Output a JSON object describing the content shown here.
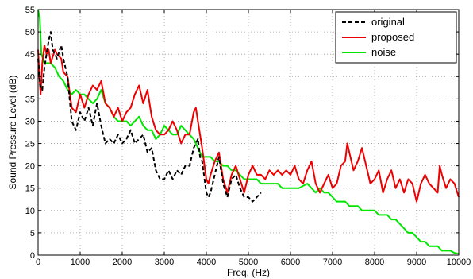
{
  "chart_data": {
    "type": "line",
    "title": "",
    "xlabel": "Freq. (Hz)",
    "ylabel": "Sound Pressure Level (dB)",
    "xlim": [
      0,
      10000
    ],
    "ylim": [
      0,
      55
    ],
    "xticks": [
      0,
      1000,
      2000,
      3000,
      4000,
      5000,
      6000,
      7000,
      8000,
      9000,
      10000
    ],
    "yticks": [
      0,
      5,
      10,
      15,
      20,
      25,
      30,
      35,
      40,
      45,
      50,
      55
    ],
    "grid": true,
    "legend_position": "top-right",
    "series": [
      {
        "name": "original",
        "color": "#000000",
        "style": "dashed",
        "points": [
          [
            0,
            44
          ],
          [
            50,
            38
          ],
          [
            100,
            37
          ],
          [
            150,
            42
          ],
          [
            250,
            48
          ],
          [
            300,
            50
          ],
          [
            350,
            46
          ],
          [
            450,
            44
          ],
          [
            550,
            47
          ],
          [
            600,
            44
          ],
          [
            700,
            40
          ],
          [
            800,
            30
          ],
          [
            900,
            28
          ],
          [
            1000,
            32
          ],
          [
            1100,
            30
          ],
          [
            1200,
            33
          ],
          [
            1300,
            29
          ],
          [
            1400,
            34
          ],
          [
            1500,
            29
          ],
          [
            1600,
            25
          ],
          [
            1700,
            26
          ],
          [
            1800,
            25
          ],
          [
            1900,
            27
          ],
          [
            2000,
            25
          ],
          [
            2100,
            26
          ],
          [
            2200,
            28
          ],
          [
            2300,
            25
          ],
          [
            2400,
            26
          ],
          [
            2500,
            27
          ],
          [
            2600,
            23
          ],
          [
            2700,
            24
          ],
          [
            2800,
            19
          ],
          [
            2900,
            17
          ],
          [
            3000,
            17
          ],
          [
            3100,
            19
          ],
          [
            3200,
            17
          ],
          [
            3300,
            19
          ],
          [
            3400,
            18
          ],
          [
            3500,
            20
          ],
          [
            3600,
            20
          ],
          [
            3700,
            24
          ],
          [
            3800,
            26
          ],
          [
            3850,
            22
          ],
          [
            3900,
            21
          ],
          [
            4000,
            14
          ],
          [
            4050,
            13
          ],
          [
            4100,
            14
          ],
          [
            4200,
            18
          ],
          [
            4300,
            22
          ],
          [
            4400,
            16
          ],
          [
            4500,
            13
          ],
          [
            4600,
            17
          ],
          [
            4700,
            18
          ],
          [
            4800,
            15
          ],
          [
            4900,
            13
          ],
          [
            5000,
            13
          ],
          [
            5100,
            12
          ],
          [
            5200,
            13
          ],
          [
            5300,
            14
          ]
        ]
      },
      {
        "name": "proposed",
        "color": "#ee0000",
        "style": "solid",
        "points": [
          [
            0,
            46
          ],
          [
            30,
            40
          ],
          [
            60,
            36
          ],
          [
            100,
            43
          ],
          [
            150,
            47
          ],
          [
            200,
            45
          ],
          [
            250,
            46
          ],
          [
            300,
            43
          ],
          [
            400,
            46
          ],
          [
            450,
            45
          ],
          [
            550,
            44
          ],
          [
            600,
            41
          ],
          [
            700,
            40
          ],
          [
            800,
            33
          ],
          [
            900,
            32
          ],
          [
            1000,
            36
          ],
          [
            1100,
            33
          ],
          [
            1200,
            36
          ],
          [
            1300,
            38
          ],
          [
            1400,
            37
          ],
          [
            1500,
            39
          ],
          [
            1600,
            34
          ],
          [
            1700,
            33
          ],
          [
            1800,
            31
          ],
          [
            1900,
            33
          ],
          [
            2000,
            30
          ],
          [
            2100,
            32
          ],
          [
            2200,
            33
          ],
          [
            2300,
            36
          ],
          [
            2400,
            38
          ],
          [
            2500,
            34
          ],
          [
            2600,
            37
          ],
          [
            2700,
            31
          ],
          [
            2800,
            28
          ],
          [
            2900,
            27
          ],
          [
            3000,
            27
          ],
          [
            3100,
            28
          ],
          [
            3200,
            30
          ],
          [
            3300,
            28
          ],
          [
            3400,
            25
          ],
          [
            3500,
            27
          ],
          [
            3600,
            27
          ],
          [
            3700,
            32
          ],
          [
            3750,
            33
          ],
          [
            3800,
            30
          ],
          [
            3900,
            24
          ],
          [
            4000,
            17
          ],
          [
            4050,
            16
          ],
          [
            4100,
            18
          ],
          [
            4200,
            21
          ],
          [
            4300,
            23
          ],
          [
            4400,
            17
          ],
          [
            4500,
            14
          ],
          [
            4600,
            18
          ],
          [
            4700,
            20
          ],
          [
            4800,
            17
          ],
          [
            4900,
            14
          ],
          [
            5000,
            18
          ],
          [
            5100,
            20
          ],
          [
            5200,
            18
          ],
          [
            5300,
            18
          ],
          [
            5400,
            17
          ],
          [
            5500,
            19
          ],
          [
            5600,
            18
          ],
          [
            5700,
            19
          ],
          [
            5800,
            18
          ],
          [
            5900,
            19
          ],
          [
            6000,
            18
          ],
          [
            6100,
            20
          ],
          [
            6200,
            17
          ],
          [
            6300,
            16
          ],
          [
            6400,
            19
          ],
          [
            6500,
            21
          ],
          [
            6600,
            16
          ],
          [
            6700,
            14
          ],
          [
            6800,
            16
          ],
          [
            6900,
            18
          ],
          [
            7000,
            15
          ],
          [
            7100,
            16
          ],
          [
            7200,
            20
          ],
          [
            7300,
            21
          ],
          [
            7350,
            25
          ],
          [
            7400,
            23
          ],
          [
            7500,
            19
          ],
          [
            7600,
            21
          ],
          [
            7700,
            24
          ],
          [
            7800,
            20
          ],
          [
            7900,
            16
          ],
          [
            8000,
            17
          ],
          [
            8100,
            19
          ],
          [
            8200,
            14
          ],
          [
            8300,
            17
          ],
          [
            8400,
            19
          ],
          [
            8500,
            15
          ],
          [
            8600,
            17
          ],
          [
            8700,
            14
          ],
          [
            8800,
            17
          ],
          [
            8900,
            16
          ],
          [
            9000,
            12
          ],
          [
            9100,
            16
          ],
          [
            9200,
            18
          ],
          [
            9300,
            16
          ],
          [
            9400,
            15
          ],
          [
            9500,
            14
          ],
          [
            9550,
            20
          ],
          [
            9600,
            18
          ],
          [
            9700,
            15
          ],
          [
            9800,
            17
          ],
          [
            9900,
            16
          ],
          [
            10000,
            13
          ]
        ]
      },
      {
        "name": "noise",
        "color": "#00e600",
        "style": "solid",
        "points": [
          [
            0,
            55
          ],
          [
            40,
            53
          ],
          [
            80,
            45
          ],
          [
            150,
            43
          ],
          [
            300,
            43
          ],
          [
            400,
            42
          ],
          [
            500,
            40
          ],
          [
            600,
            39
          ],
          [
            700,
            37
          ],
          [
            800,
            36
          ],
          [
            900,
            37
          ],
          [
            1000,
            36
          ],
          [
            1100,
            36
          ],
          [
            1200,
            35
          ],
          [
            1300,
            34
          ],
          [
            1400,
            35
          ],
          [
            1500,
            37
          ],
          [
            1600,
            34
          ],
          [
            1700,
            33
          ],
          [
            1800,
            31
          ],
          [
            1900,
            30
          ],
          [
            2000,
            30
          ],
          [
            2100,
            30
          ],
          [
            2200,
            29
          ],
          [
            2300,
            30
          ],
          [
            2400,
            31
          ],
          [
            2500,
            29
          ],
          [
            2600,
            28
          ],
          [
            2700,
            28
          ],
          [
            2800,
            26
          ],
          [
            2900,
            27
          ],
          [
            3000,
            29
          ],
          [
            3100,
            28
          ],
          [
            3200,
            27
          ],
          [
            3300,
            27
          ],
          [
            3400,
            29
          ],
          [
            3500,
            28
          ],
          [
            3600,
            27
          ],
          [
            3700,
            26
          ],
          [
            3800,
            24
          ],
          [
            3900,
            22
          ],
          [
            4000,
            22
          ],
          [
            4100,
            22
          ],
          [
            4200,
            21
          ],
          [
            4300,
            21
          ],
          [
            4400,
            20
          ],
          [
            4500,
            20
          ],
          [
            4600,
            19
          ],
          [
            4700,
            19
          ],
          [
            4800,
            18
          ],
          [
            4900,
            17
          ],
          [
            5000,
            17
          ],
          [
            5100,
            17
          ],
          [
            5200,
            17
          ],
          [
            5300,
            16
          ],
          [
            5400,
            16
          ],
          [
            5500,
            16
          ],
          [
            5600,
            16
          ],
          [
            5700,
            16
          ],
          [
            5800,
            15
          ],
          [
            5900,
            15
          ],
          [
            6000,
            15
          ],
          [
            6200,
            15
          ],
          [
            6400,
            16
          ],
          [
            6500,
            15
          ],
          [
            6600,
            14
          ],
          [
            6700,
            15
          ],
          [
            6800,
            14
          ],
          [
            6900,
            14
          ],
          [
            7000,
            13
          ],
          [
            7100,
            12
          ],
          [
            7200,
            12
          ],
          [
            7300,
            12
          ],
          [
            7400,
            11
          ],
          [
            7500,
            11
          ],
          [
            7600,
            11
          ],
          [
            7700,
            10
          ],
          [
            7800,
            10
          ],
          [
            7900,
            10
          ],
          [
            8000,
            10
          ],
          [
            8100,
            9
          ],
          [
            8200,
            9
          ],
          [
            8300,
            9
          ],
          [
            8400,
            8
          ],
          [
            8500,
            8
          ],
          [
            8600,
            7
          ],
          [
            8700,
            6
          ],
          [
            8800,
            5
          ],
          [
            8900,
            5
          ],
          [
            9000,
            4
          ],
          [
            9100,
            3
          ],
          [
            9200,
            3
          ],
          [
            9300,
            2
          ],
          [
            9400,
            2
          ],
          [
            9500,
            2
          ],
          [
            9600,
            1
          ],
          [
            9700,
            1
          ],
          [
            9800,
            1
          ],
          [
            9900,
            0.5
          ],
          [
            10000,
            0.3
          ]
        ]
      }
    ]
  }
}
